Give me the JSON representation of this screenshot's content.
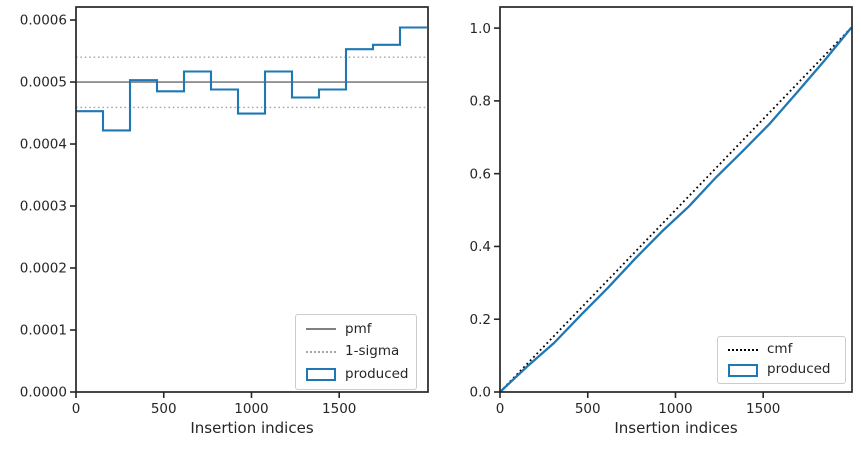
{
  "colors": {
    "produced": "#1f77b4",
    "pmf": "#808080",
    "sigma": "#a6a6a6",
    "cmf": "#000000",
    "axis": "#262626",
    "text": "#262626",
    "legend_border": "#cccccc"
  },
  "chart_data": [
    {
      "type": "bar",
      "subtype": "step-histogram",
      "title": "",
      "xlabel": "Insertion indices",
      "ylabel": "",
      "xlim": [
        0,
        2006
      ],
      "ylim": [
        0,
        0.000621
      ],
      "grid": false,
      "xticks": {
        "values": [
          0,
          500,
          1000,
          1500
        ],
        "labels": [
          "0",
          "500",
          "1000",
          "1500"
        ]
      },
      "yticks": {
        "values": [
          0.0,
          0.0001,
          0.0002,
          0.0003,
          0.0004,
          0.0005,
          0.0006
        ],
        "labels": [
          "0.0000",
          "0.0001",
          "0.0002",
          "0.0003",
          "0.0004",
          "0.0005",
          "0.0006"
        ]
      },
      "bin_edges": [
        0,
        153.8,
        307.7,
        461.5,
        615.4,
        769.2,
        923.1,
        1076.9,
        1230.8,
        1384.6,
        1538.5,
        1692.3,
        1846.2,
        2000
      ],
      "bin_values": [
        0.000453,
        0.000422,
        0.000503,
        0.000485,
        0.000517,
        0.000488,
        0.000449,
        0.000517,
        0.000475,
        0.000488,
        0.000553,
        0.00056,
        0.000588
      ],
      "pmf_value": 0.0005,
      "sigma_upper": 0.00054,
      "sigma_lower": 0.000459,
      "legend": [
        {
          "label": "pmf",
          "style": "solid",
          "color": "#808080"
        },
        {
          "label": "1-sigma",
          "style": "dotted",
          "color": "#a6a6a6"
        },
        {
          "label": "produced",
          "style": "box",
          "color": "#1f77b4"
        }
      ],
      "legend_position": "lower right"
    },
    {
      "type": "line",
      "subtype": "cumulative",
      "title": "",
      "xlabel": "Insertion indices",
      "ylabel": "",
      "xlim": [
        0,
        2006
      ],
      "ylim": [
        0,
        1.058
      ],
      "grid": false,
      "xticks": {
        "values": [
          0,
          500,
          1000,
          1500
        ],
        "labels": [
          "0",
          "500",
          "1000",
          "1500"
        ]
      },
      "yticks": {
        "values": [
          0.0,
          0.2,
          0.4,
          0.6,
          0.8,
          1.0
        ],
        "labels": [
          "0.0",
          "0.2",
          "0.4",
          "0.6",
          "0.8",
          "1.0"
        ]
      },
      "series": [
        {
          "name": "cmf",
          "x": [
            0,
            2000
          ],
          "y": [
            0,
            1.0
          ]
        },
        {
          "name": "produced",
          "x": [
            0,
            153.8,
            307.7,
            461.5,
            615.4,
            769.2,
            923.1,
            1076.9,
            1230.8,
            1384.6,
            1538.5,
            1692.3,
            1846.2,
            2000
          ],
          "y": [
            0,
            0.0697,
            0.1346,
            0.212,
            0.2866,
            0.3661,
            0.4412,
            0.5103,
            0.5898,
            0.6629,
            0.738,
            0.8231,
            0.9092,
            1.0
          ]
        }
      ],
      "legend": [
        {
          "label": "cmf",
          "style": "dotted",
          "color": "#000000"
        },
        {
          "label": "produced",
          "style": "box",
          "color": "#1f77b4"
        }
      ],
      "legend_position": "lower right"
    }
  ]
}
